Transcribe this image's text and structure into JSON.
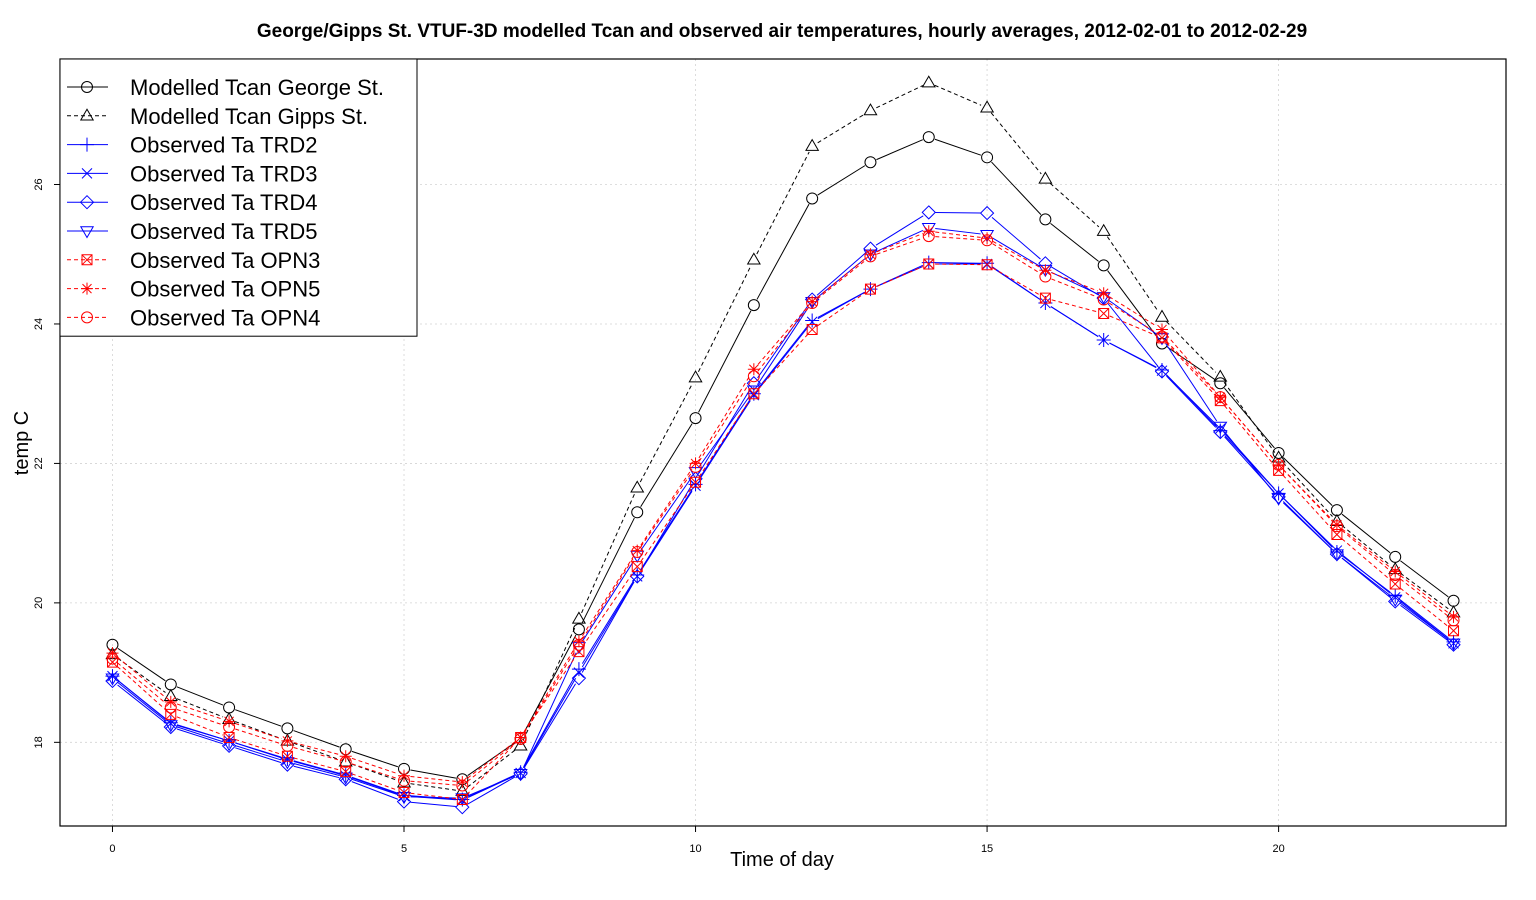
{
  "chart_data": {
    "type": "line",
    "title": "George/Gipps St. VTUF-3D modelled Tcan and observed air temperatures, hourly averages, 2012-02-01 to 2012-02-29",
    "xlabel": "Time of day",
    "ylabel": "temp C",
    "xlim": [
      -0.9,
      23.9
    ],
    "ylim": [
      16.8,
      27.8
    ],
    "xticks": [
      0,
      5,
      10,
      15,
      20
    ],
    "yticks": [
      18,
      20,
      22,
      24,
      26
    ],
    "grid": true,
    "legend_position": "top-left",
    "x": [
      0,
      1,
      2,
      3,
      4,
      5,
      6,
      7,
      8,
      9,
      10,
      11,
      12,
      13,
      14,
      15,
      16,
      17,
      18,
      19,
      20,
      21,
      22,
      23
    ],
    "series": [
      {
        "name": "Modelled Tcan George St.",
        "color": "#000000",
        "dash": "solid",
        "marker": "circle",
        "values": [
          19.4,
          18.83,
          18.5,
          18.2,
          17.9,
          17.62,
          17.47,
          18.05,
          19.62,
          21.3,
          22.65,
          24.27,
          25.8,
          26.32,
          26.68,
          26.39,
          25.5,
          24.84,
          23.72,
          23.15,
          22.15,
          21.33,
          20.66,
          20.03
        ]
      },
      {
        "name": "Modelled Tcan Gipps St.",
        "color": "#000000",
        "dash": "dashed",
        "marker": "triangle-up",
        "values": [
          19.26,
          18.66,
          18.33,
          18.02,
          17.72,
          17.42,
          17.3,
          17.95,
          19.77,
          21.65,
          23.23,
          24.92,
          26.55,
          27.06,
          27.46,
          27.1,
          26.08,
          25.33,
          24.1,
          23.24,
          22.08,
          21.17,
          20.48,
          19.86
        ]
      },
      {
        "name": "Observed Ta TRD2",
        "color": "#0000ff",
        "dash": "solid",
        "marker": "plus",
        "values": [
          18.95,
          18.28,
          18.02,
          17.76,
          17.53,
          17.24,
          17.18,
          17.57,
          19.05,
          20.4,
          21.7,
          23.0,
          24.05,
          24.5,
          24.88,
          24.87,
          24.3,
          23.77,
          23.34,
          22.47,
          21.57,
          20.73,
          20.1,
          19.44
        ]
      },
      {
        "name": "Observed Ta TRD3",
        "color": "#0000ff",
        "dash": "solid",
        "marker": "x",
        "values": [
          18.95,
          18.27,
          18.02,
          17.75,
          17.52,
          17.23,
          17.17,
          17.56,
          19.0,
          20.38,
          21.68,
          22.98,
          24.03,
          24.5,
          24.86,
          24.86,
          24.3,
          23.77,
          23.33,
          22.5,
          21.57,
          20.75,
          20.08,
          19.42
        ]
      },
      {
        "name": "Observed Ta TRD4",
        "color": "#0000ff",
        "dash": "solid",
        "marker": "diamond",
        "values": [
          18.88,
          18.22,
          17.95,
          17.68,
          17.47,
          17.15,
          17.07,
          17.55,
          18.92,
          20.38,
          21.78,
          23.15,
          24.35,
          25.08,
          25.6,
          25.59,
          24.87,
          24.37,
          23.32,
          22.45,
          21.52,
          20.7,
          20.02,
          19.4
        ]
      },
      {
        "name": "Observed Ta TRD5",
        "color": "#0000ff",
        "dash": "solid",
        "marker": "triangle-down",
        "values": [
          18.92,
          18.25,
          17.98,
          17.72,
          17.5,
          17.22,
          17.2,
          17.55,
          19.37,
          20.68,
          21.88,
          23.05,
          24.32,
          25.0,
          25.38,
          25.28,
          24.78,
          24.39,
          23.8,
          22.53,
          21.5,
          20.7,
          20.05,
          19.42
        ]
      },
      {
        "name": "Observed Ta OPN3",
        "color": "#ff0000",
        "dash": "dashed",
        "marker": "boxed-x",
        "values": [
          19.15,
          18.4,
          18.07,
          17.8,
          17.58,
          17.28,
          17.18,
          18.07,
          19.3,
          20.52,
          21.73,
          23.0,
          23.92,
          24.5,
          24.86,
          24.85,
          24.37,
          24.15,
          23.8,
          22.9,
          21.9,
          20.98,
          20.27,
          19.6
        ]
      },
      {
        "name": "Observed Ta OPN5",
        "color": "#ff0000",
        "dash": "dashed",
        "marker": "asterisk",
        "values": [
          19.28,
          18.58,
          18.3,
          18.02,
          17.8,
          17.52,
          17.43,
          18.07,
          19.45,
          20.75,
          22.0,
          23.35,
          24.32,
          25.0,
          25.33,
          25.23,
          24.77,
          24.44,
          23.92,
          22.95,
          21.98,
          21.12,
          20.45,
          19.8
        ]
      },
      {
        "name": "Observed Ta OPN4",
        "color": "#ff0000",
        "dash": "dashed",
        "marker": "circle",
        "values": [
          19.2,
          18.5,
          18.22,
          17.95,
          17.72,
          17.45,
          17.38,
          18.05,
          19.4,
          20.73,
          21.95,
          23.25,
          24.3,
          24.97,
          25.26,
          25.2,
          24.68,
          24.35,
          23.82,
          22.95,
          21.98,
          21.1,
          20.4,
          19.75
        ]
      }
    ]
  }
}
